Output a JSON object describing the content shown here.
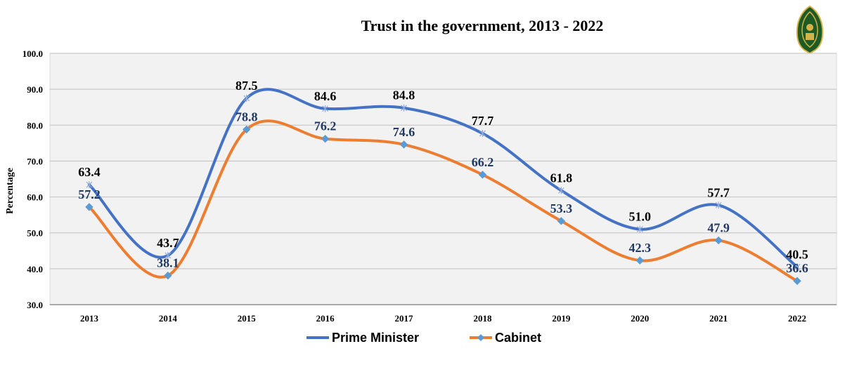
{
  "chart_data": {
    "type": "line",
    "title": "Trust in the government, 2013 - 2022",
    "xlabel": "",
    "ylabel": "Percentage",
    "ylim": [
      30,
      100
    ],
    "yticks": [
      "30.0",
      "40.0",
      "50.0",
      "60.0",
      "70.0",
      "80.0",
      "90.0",
      "100.0"
    ],
    "categories": [
      "2013",
      "2014",
      "2015",
      "2016",
      "2017",
      "2018",
      "2019",
      "2020",
      "2021",
      "2022"
    ],
    "grid": "horizontal",
    "legend_position": "bottom",
    "smooth": true,
    "series": [
      {
        "name": "Prime Minister",
        "color": "#4472c4",
        "marker": "asterisk",
        "label_color": "#000000",
        "values": [
          63.4,
          43.7,
          87.5,
          84.6,
          84.8,
          77.7,
          61.8,
          51.0,
          57.7,
          40.5
        ],
        "labels": [
          "63.4",
          "43.7",
          "87.5",
          "84.6",
          "84.8",
          "77.7",
          "61.8",
          "51.0",
          "57.7",
          "40.5"
        ]
      },
      {
        "name": "Cabinet",
        "color": "#ed7d31",
        "marker": "diamond",
        "marker_color": "#5b9bd5",
        "label_color": "#1f3864",
        "values": [
          57.2,
          38.1,
          78.8,
          76.2,
          74.6,
          66.2,
          53.3,
          42.3,
          47.9,
          36.6
        ],
        "labels": [
          "57.2",
          "38.1",
          "78.8",
          "76.2",
          "74.6",
          "66.2",
          "53.3",
          "42.3",
          "47.9",
          "36.6"
        ]
      }
    ]
  },
  "logo": {
    "icon": "seal-logo-icon",
    "color": "#1e5a24",
    "accent": "#d4b24a"
  }
}
